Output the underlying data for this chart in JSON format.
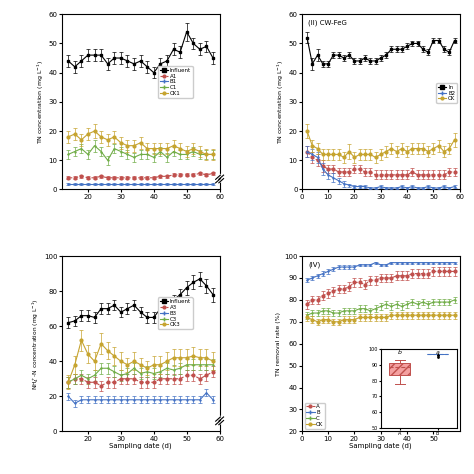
{
  "panel_I": {
    "x": [
      14,
      16,
      18,
      20,
      22,
      24,
      26,
      28,
      30,
      32,
      34,
      36,
      38,
      40,
      42,
      44,
      46,
      48,
      50,
      52,
      54,
      56,
      58
    ],
    "influent": [
      44,
      42,
      44,
      46,
      46,
      46,
      43,
      45,
      45,
      44,
      43,
      44,
      42,
      40,
      43,
      44,
      48,
      47,
      54,
      50,
      48,
      49,
      45
    ],
    "influent_err": [
      2,
      2,
      2,
      2,
      2,
      2,
      2,
      2,
      2,
      2,
      2,
      2,
      2,
      2,
      2,
      2,
      2,
      2,
      3,
      2,
      2,
      2,
      2
    ],
    "A1": [
      4,
      4,
      4.5,
      4,
      4,
      4.5,
      4,
      4,
      4,
      4,
      4,
      4,
      4,
      4,
      4.5,
      4.5,
      5,
      5,
      5,
      5,
      5.5,
      5,
      5.5
    ],
    "A1_err": [
      0.5,
      0.5,
      0.5,
      0.5,
      0.5,
      0.5,
      0.5,
      0.5,
      0.5,
      0.5,
      0.5,
      0.5,
      0.5,
      0.5,
      0.5,
      0.5,
      0.5,
      0.5,
      0.5,
      0.5,
      0.5,
      0.5,
      0.5
    ],
    "B1": [
      2,
      2,
      2,
      2,
      2,
      2,
      2,
      2,
      2,
      2,
      2,
      2,
      2,
      2,
      2,
      2,
      2,
      2,
      2,
      2,
      2,
      2,
      2
    ],
    "B1_err": [
      0.3,
      0.3,
      0.3,
      0.3,
      0.3,
      0.3,
      0.3,
      0.3,
      0.3,
      0.3,
      0.3,
      0.3,
      0.3,
      0.3,
      0.3,
      0.3,
      0.3,
      0.3,
      0.3,
      0.3,
      0.3,
      0.3,
      0.3
    ],
    "C1": [
      12,
      13,
      14,
      12,
      15,
      13,
      10,
      14,
      13,
      12,
      11,
      12,
      12,
      11,
      13,
      11,
      13,
      12,
      12,
      13,
      12,
      12,
      12
    ],
    "C1_err": [
      1.5,
      1.5,
      1.5,
      1.5,
      2,
      1.5,
      1.5,
      1.5,
      1.5,
      1.5,
      1.5,
      1.5,
      1.5,
      1.5,
      1.5,
      1.5,
      1.5,
      1.5,
      1.5,
      1.5,
      1.5,
      1.5,
      1.5
    ],
    "CK1": [
      18,
      19,
      17,
      19,
      20,
      18,
      17,
      18,
      16,
      15,
      15,
      16,
      14,
      14,
      14,
      14,
      15,
      14,
      13,
      14,
      13,
      12,
      12
    ],
    "CK1_err": [
      2,
      2,
      2,
      2,
      2.5,
      2,
      2,
      2,
      2,
      2,
      2,
      2,
      2,
      2,
      2,
      2,
      2,
      2,
      2,
      2,
      2,
      2,
      2
    ]
  },
  "panel_II": {
    "x": [
      2,
      4,
      6,
      8,
      10,
      12,
      14,
      16,
      18,
      20,
      22,
      24,
      26,
      28,
      30,
      32,
      34,
      36,
      38,
      40,
      42,
      44,
      46,
      48,
      50,
      52,
      54,
      56,
      58
    ],
    "influent": [
      52,
      43,
      46,
      43,
      43,
      46,
      46,
      45,
      46,
      44,
      44,
      45,
      44,
      44,
      45,
      46,
      48,
      48,
      48,
      49,
      50,
      50,
      48,
      47,
      51,
      51,
      48,
      47,
      51
    ],
    "influent_err": [
      2,
      2,
      2,
      1,
      1,
      1,
      1,
      1,
      1,
      1,
      1,
      1,
      1,
      1,
      1,
      1,
      1,
      1,
      1,
      1,
      1,
      1,
      1,
      1,
      1,
      1,
      1,
      1,
      1
    ],
    "A2": [
      13,
      11,
      10,
      8,
      7,
      7,
      6,
      6,
      6,
      7,
      7,
      6,
      6,
      5,
      5,
      5,
      5,
      5,
      5,
      5,
      6,
      5,
      5,
      5,
      5,
      5,
      5,
      6,
      6
    ],
    "A2_err": [
      2,
      2,
      2,
      2,
      1.5,
      1.5,
      1.5,
      1.5,
      1.5,
      1.5,
      1.5,
      1.5,
      1.5,
      1.5,
      1.5,
      1.5,
      1.5,
      1.5,
      1.5,
      1.5,
      1.5,
      1.5,
      1.5,
      1.5,
      1.5,
      1.5,
      1.5,
      1.5,
      1.5
    ],
    "B2": [
      13,
      12,
      11,
      7,
      5,
      4,
      3,
      2,
      1.5,
      1,
      1,
      1,
      0.5,
      0.5,
      1,
      0.5,
      0.5,
      0.5,
      1,
      0.5,
      1,
      0.5,
      0.5,
      1,
      0.5,
      0.5,
      1,
      0.5,
      1
    ],
    "B2_err": [
      2,
      2,
      2,
      2,
      1.5,
      1.5,
      1,
      1,
      0.5,
      0.5,
      0.5,
      0.5,
      0.5,
      0.5,
      0.5,
      0.5,
      0.5,
      0.5,
      0.5,
      0.5,
      0.5,
      0.5,
      0.5,
      0.5,
      0.5,
      0.5,
      0.5,
      0.5,
      0.5
    ],
    "CK2": [
      20,
      15,
      14,
      12,
      12,
      12,
      12,
      11,
      13,
      11,
      12,
      12,
      12,
      11,
      12,
      13,
      14,
      13,
      14,
      13,
      14,
      14,
      14,
      13,
      14,
      15,
      13,
      14,
      17
    ],
    "CK2_err": [
      2.5,
      2,
      2,
      2,
      2,
      2,
      2,
      2,
      2.5,
      2,
      2,
      2,
      2,
      2,
      2,
      2,
      2,
      2,
      2,
      2,
      2,
      2,
      2,
      2,
      2,
      2,
      2,
      2,
      2.5
    ]
  },
  "panel_III": {
    "x": [
      14,
      16,
      18,
      20,
      22,
      24,
      26,
      28,
      30,
      32,
      34,
      36,
      38,
      40,
      42,
      44,
      46,
      48,
      50,
      52,
      54,
      56,
      58
    ],
    "influent": [
      62,
      63,
      66,
      66,
      65,
      70,
      70,
      72,
      68,
      70,
      72,
      68,
      65,
      65,
      70,
      72,
      75,
      78,
      82,
      85,
      87,
      83,
      78
    ],
    "influent_err": [
      3,
      3,
      3,
      3,
      3,
      3,
      3,
      3,
      3,
      3,
      3,
      3,
      3,
      3,
      3,
      3,
      3,
      3,
      4,
      4,
      4,
      4,
      4
    ],
    "A3": [
      28,
      30,
      30,
      28,
      28,
      26,
      28,
      28,
      30,
      30,
      30,
      28,
      28,
      28,
      30,
      30,
      30,
      30,
      32,
      32,
      30,
      32,
      34
    ],
    "A3_err": [
      3,
      3,
      3,
      3,
      3,
      3,
      3,
      3,
      3,
      3,
      3,
      3,
      3,
      3,
      3,
      3,
      3,
      3,
      3,
      3,
      3,
      3,
      3
    ],
    "B3": [
      20,
      16,
      18,
      18,
      18,
      18,
      18,
      18,
      18,
      18,
      18,
      18,
      18,
      18,
      18,
      18,
      18,
      18,
      18,
      18,
      18,
      22,
      18
    ],
    "B3_err": [
      2,
      2,
      2,
      2,
      2,
      2,
      2,
      2,
      2,
      2,
      2,
      2,
      2,
      2,
      2,
      2,
      2,
      2,
      2,
      2,
      2,
      2,
      2
    ],
    "C3": [
      28,
      30,
      32,
      30,
      32,
      36,
      36,
      34,
      32,
      33,
      36,
      33,
      34,
      33,
      34,
      36,
      35,
      36,
      38,
      38,
      38,
      38,
      38
    ],
    "C3_err": [
      3,
      3,
      3,
      3,
      3,
      3,
      3,
      3,
      3,
      3,
      3,
      3,
      3,
      3,
      3,
      3,
      3,
      3,
      3,
      3,
      3,
      3,
      3
    ],
    "CK3": [
      28,
      38,
      52,
      44,
      40,
      50,
      46,
      43,
      40,
      38,
      40,
      38,
      36,
      38,
      38,
      40,
      42,
      42,
      42,
      43,
      42,
      42,
      40
    ],
    "CK3_err": [
      4,
      5,
      6,
      5,
      5,
      6,
      5,
      5,
      5,
      4,
      5,
      4,
      4,
      5,
      5,
      5,
      5,
      5,
      5,
      5,
      5,
      5,
      5
    ]
  },
  "panel_IV": {
    "x": [
      2,
      4,
      6,
      8,
      10,
      12,
      14,
      16,
      18,
      20,
      22,
      24,
      26,
      28,
      30,
      32,
      34,
      36,
      38,
      40,
      42,
      44,
      46,
      48,
      50,
      52,
      54,
      56,
      58
    ],
    "A": [
      78,
      80,
      80,
      82,
      83,
      84,
      85,
      85,
      86,
      88,
      88,
      87,
      89,
      89,
      90,
      90,
      90,
      91,
      91,
      91,
      92,
      92,
      92,
      92,
      93,
      93,
      93,
      93,
      93
    ],
    "A_err": [
      2,
      2,
      2,
      2,
      2,
      2,
      2,
      2,
      2,
      2,
      2,
      2,
      2,
      2,
      2,
      2,
      2,
      2,
      2,
      2,
      2,
      2,
      2,
      2,
      2,
      2,
      2,
      2,
      2
    ],
    "B": [
      89,
      90,
      91,
      92,
      93,
      94,
      95,
      95,
      95,
      95,
      96,
      96,
      96,
      97,
      96,
      96,
      97,
      97,
      97,
      97,
      97,
      97,
      97,
      97,
      97,
      97,
      97,
      97,
      97
    ],
    "B_err": [
      1,
      1,
      1,
      1,
      1,
      1,
      1,
      1,
      1,
      1,
      0.5,
      0.5,
      0.5,
      0.5,
      0.5,
      0.5,
      0.5,
      0.5,
      0.5,
      0.5,
      0.5,
      0.5,
      0.5,
      0.5,
      0.5,
      0.5,
      0.5,
      0.5,
      0.5
    ],
    "C": [
      73,
      74,
      74,
      75,
      75,
      74,
      74,
      75,
      75,
      75,
      76,
      76,
      75,
      76,
      77,
      78,
      77,
      78,
      77,
      78,
      79,
      78,
      79,
      78,
      79,
      79,
      79,
      79,
      80
    ],
    "C_err": [
      1.5,
      1.5,
      1.5,
      1.5,
      1.5,
      1.5,
      1.5,
      1.5,
      1.5,
      1.5,
      1.5,
      1.5,
      1.5,
      1.5,
      1.5,
      1.5,
      1.5,
      1.5,
      1.5,
      1.5,
      1.5,
      1.5,
      1.5,
      1.5,
      1.5,
      1.5,
      1.5,
      1.5,
      1.5
    ],
    "CK": [
      72,
      71,
      70,
      71,
      71,
      70,
      70,
      71,
      71,
      71,
      72,
      72,
      72,
      72,
      72,
      72,
      73,
      73,
      73,
      73,
      73,
      73,
      73,
      73,
      73,
      73,
      73,
      73,
      73
    ],
    "CK_err": [
      1.5,
      1.5,
      1.5,
      1.5,
      1.5,
      1.5,
      1.5,
      1.5,
      1.5,
      1.5,
      1.5,
      1.5,
      1.5,
      1.5,
      1.5,
      1.5,
      1.5,
      1.5,
      1.5,
      1.5,
      1.5,
      1.5,
      1.5,
      1.5,
      1.5,
      1.5,
      1.5,
      1.5,
      1.5
    ]
  },
  "colors": {
    "influent": "#000000",
    "A": "#c0504d",
    "B": "#4472c4",
    "C": "#70ad47",
    "CK": "#c6a430"
  },
  "xlabel": "Sampling date (d)"
}
